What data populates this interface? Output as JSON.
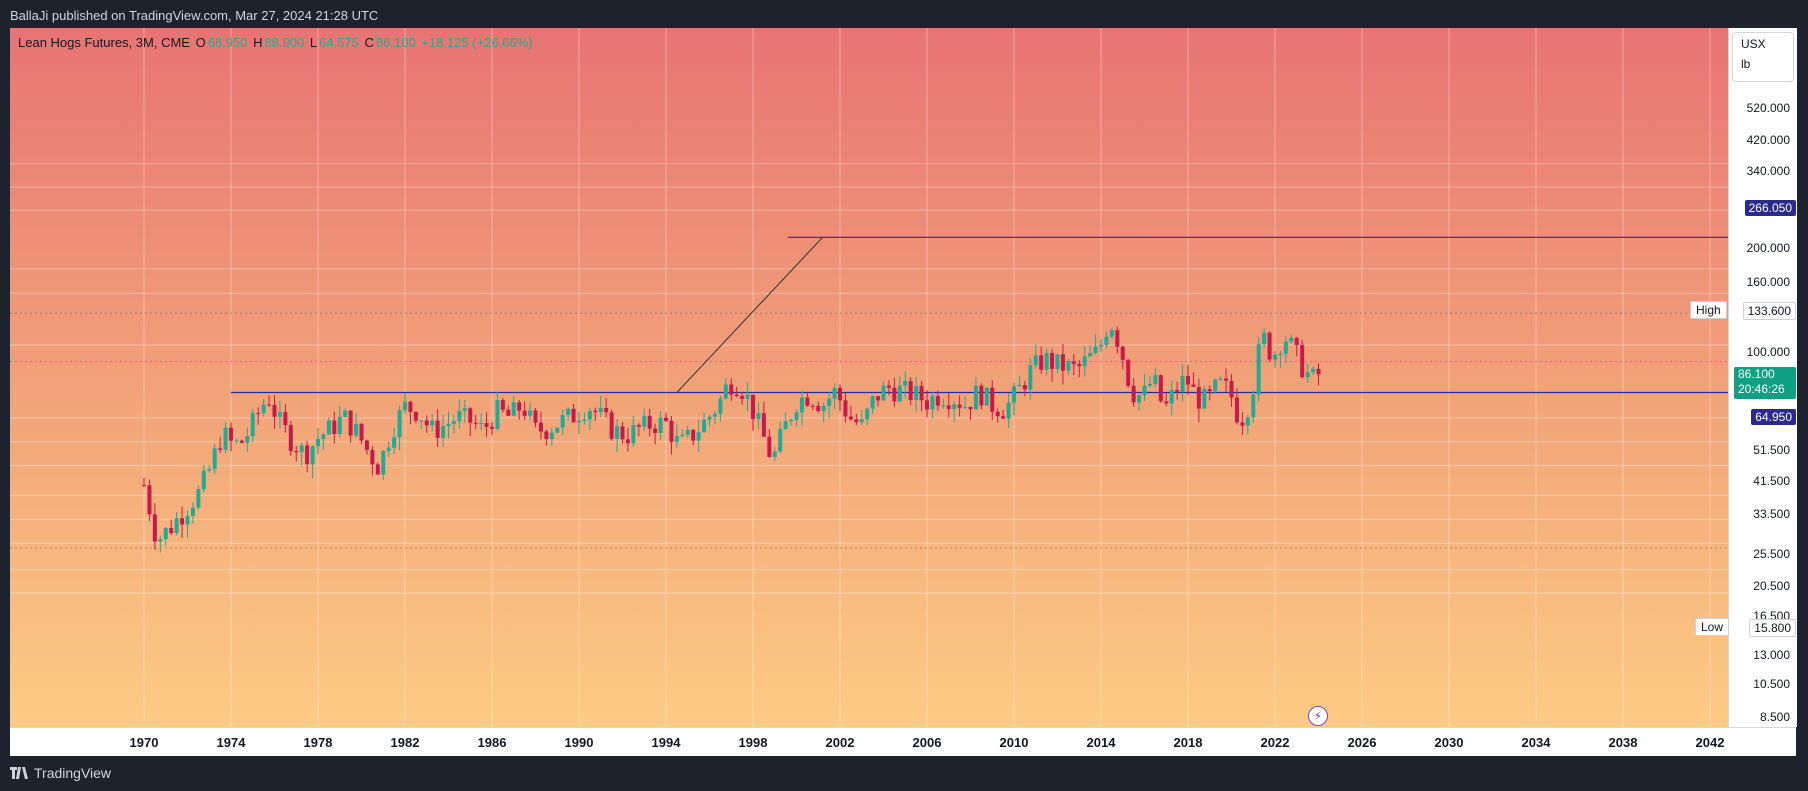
{
  "header": {
    "published": "BallaJi published on TradingView.com, Mar 27, 2024 21:28 UTC"
  },
  "legend": {
    "symbol": "Lean Hogs Futures, 3M, CME",
    "o_label": "O",
    "o": "68.950",
    "h_label": "H",
    "h": "88.900",
    "l_label": "L",
    "l": "64.575",
    "c_label": "C",
    "c": "86.100",
    "change": "+18.125 (+26.66%)"
  },
  "units": {
    "currency": "USX",
    "unit": "lb"
  },
  "price_axis": {
    "ticks": [
      "520.000",
      "420.000",
      "340.000",
      "266.050",
      "200.000",
      "160.000",
      "133.600",
      "100.000",
      "86.100",
      "64.950",
      "51.500",
      "41.500",
      "33.500",
      "25.500",
      "20.500",
      "16.500",
      "15.800",
      "13.000",
      "10.500",
      "8.500"
    ],
    "last_price": "86.100",
    "countdown": "20:46:26",
    "high_label": "High",
    "high_value": "133.600",
    "low_label": "Low",
    "low_value": "15.800",
    "resistance": "266.050",
    "support": "64.950"
  },
  "time_axis": {
    "labels": [
      "1970",
      "1974",
      "1978",
      "1982",
      "1986",
      "1990",
      "1994",
      "1998",
      "2002",
      "2006",
      "2010",
      "2014",
      "2018",
      "2022",
      "2026",
      "2030",
      "2034",
      "2038",
      "2042"
    ]
  },
  "footer": {
    "brand": "TradingView"
  },
  "colors": {
    "up": "#22ab94",
    "down": "#c9184a",
    "line": "#2b2b8f",
    "bg_top": "#e87474",
    "bg_bottom": "#fdcb84"
  },
  "chart_data": {
    "type": "candlestick",
    "title": "Lean Hogs Futures, 3M, CME",
    "y_scale": "log",
    "ylim": [
      8.5,
      520
    ],
    "xlim": [
      1964,
      2043
    ],
    "horizontal_lines": [
      266.05,
      64.95
    ],
    "trend_line": [
      [
        1994.5,
        64.95
      ],
      [
        2001.2,
        266.05
      ]
    ],
    "waypoints": [
      [
        1970.0,
        28
      ],
      [
        1970.6,
        17
      ],
      [
        1971.2,
        19
      ],
      [
        1971.8,
        22
      ],
      [
        1972.5,
        26
      ],
      [
        1973.0,
        32
      ],
      [
        1973.6,
        45
      ],
      [
        1974.1,
        40
      ],
      [
        1974.6,
        42
      ],
      [
        1975.2,
        53
      ],
      [
        1975.7,
        63
      ],
      [
        1976.2,
        50
      ],
      [
        1976.8,
        42
      ],
      [
        1977.4,
        37
      ],
      [
        1978.0,
        43
      ],
      [
        1978.6,
        47
      ],
      [
        1979.2,
        52
      ],
      [
        1979.8,
        45
      ],
      [
        1980.3,
        38
      ],
      [
        1980.8,
        33
      ],
      [
        1981.4,
        47
      ],
      [
        1982.0,
        57
      ],
      [
        1982.6,
        55
      ],
      [
        1983.2,
        46
      ],
      [
        1983.8,
        48
      ],
      [
        1984.4,
        52
      ],
      [
        1985.0,
        50
      ],
      [
        1985.6,
        46
      ],
      [
        1986.2,
        55
      ],
      [
        1986.8,
        52
      ],
      [
        1987.4,
        58
      ],
      [
        1988.0,
        46
      ],
      [
        1988.6,
        47
      ],
      [
        1989.2,
        50
      ],
      [
        1989.8,
        53
      ],
      [
        1990.4,
        58
      ],
      [
        1991.0,
        52
      ],
      [
        1991.6,
        46
      ],
      [
        1992.2,
        44
      ],
      [
        1992.8,
        47
      ],
      [
        1993.4,
        49
      ],
      [
        1994.0,
        49
      ],
      [
        1994.6,
        40
      ],
      [
        1995.2,
        44
      ],
      [
        1995.8,
        50
      ],
      [
        1996.4,
        58
      ],
      [
        1996.9,
        72
      ],
      [
        1997.4,
        70
      ],
      [
        1997.9,
        58
      ],
      [
        1998.4,
        45
      ],
      [
        1998.9,
        35
      ],
      [
        1999.4,
        46
      ],
      [
        2000.0,
        60
      ],
      [
        2000.6,
        64
      ],
      [
        2001.2,
        58
      ],
      [
        2001.8,
        66
      ],
      [
        2002.4,
        52
      ],
      [
        2003.0,
        48
      ],
      [
        2003.6,
        62
      ],
      [
        2004.2,
        68
      ],
      [
        2004.8,
        66
      ],
      [
        2005.4,
        64
      ],
      [
        2006.0,
        60
      ],
      [
        2006.6,
        64
      ],
      [
        2007.2,
        62
      ],
      [
        2007.8,
        58
      ],
      [
        2008.4,
        66
      ],
      [
        2009.0,
        58
      ],
      [
        2009.6,
        56
      ],
      [
        2010.2,
        66
      ],
      [
        2010.8,
        80
      ],
      [
        2011.4,
        88
      ],
      [
        2011.9,
        84
      ],
      [
        2012.4,
        82
      ],
      [
        2012.9,
        80
      ],
      [
        2013.4,
        88
      ],
      [
        2013.9,
        95
      ],
      [
        2014.4,
        128
      ],
      [
        2014.9,
        98
      ],
      [
        2015.4,
        66
      ],
      [
        2015.9,
        62
      ],
      [
        2016.4,
        74
      ],
      [
        2016.9,
        55
      ],
      [
        2017.4,
        66
      ],
      [
        2017.9,
        74
      ],
      [
        2018.4,
        62
      ],
      [
        2018.9,
        60
      ],
      [
        2019.4,
        70
      ],
      [
        2019.9,
        66
      ],
      [
        2020.4,
        50
      ],
      [
        2020.9,
        62
      ],
      [
        2021.4,
        110
      ],
      [
        2021.9,
        90
      ],
      [
        2022.4,
        110
      ],
      [
        2022.9,
        94
      ],
      [
        2023.4,
        78
      ],
      [
        2023.9,
        72
      ],
      [
        2024.2,
        86.1
      ]
    ]
  }
}
